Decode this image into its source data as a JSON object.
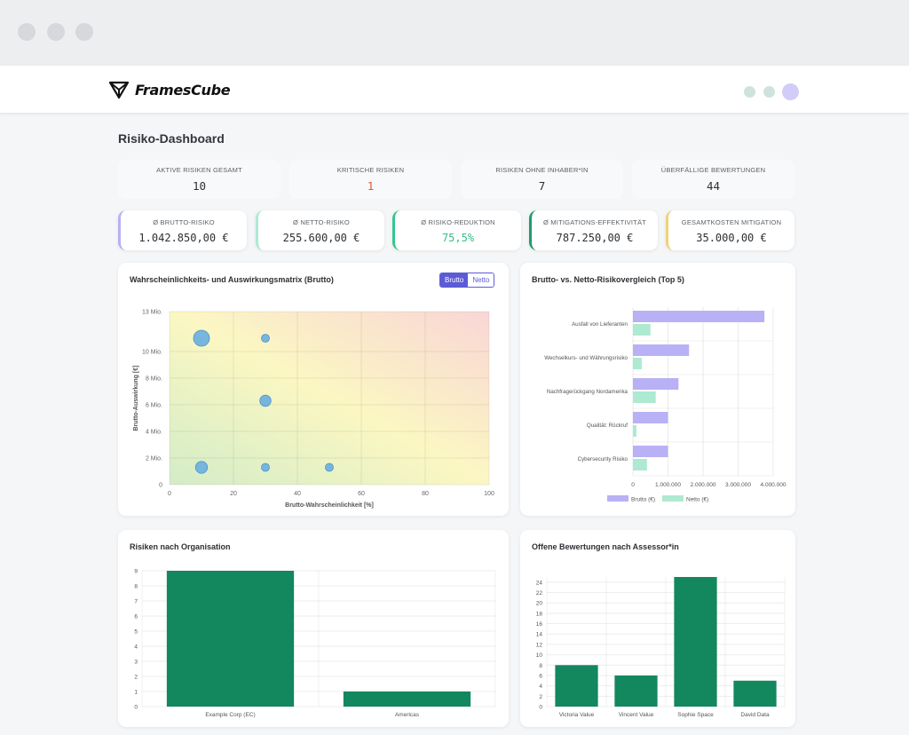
{
  "app": {
    "name": "FramesCube"
  },
  "page_title": "Risiko-Dashboard",
  "stats": [
    {
      "label": "AKTIVE RISIKEN GESAMT",
      "value": "10",
      "color": "#2d2f33"
    },
    {
      "label": "KRITISCHE RISIKEN",
      "value": "1",
      "color": "#e05a2b"
    },
    {
      "label": "RISIKEN OHNE INHABER*IN",
      "value": "7",
      "color": "#2d2f33"
    },
    {
      "label": "ÜBERFÄLLIGE BEWERTUNGEN",
      "value": "44",
      "color": "#2d2f33"
    }
  ],
  "kpis": [
    {
      "label": "Ø BRUTTO-RISIKO",
      "value": "1.042.850,00 €",
      "accent": "#b8b1f5",
      "color": "#2d2f33"
    },
    {
      "label": "Ø NETTO-RISIKO",
      "value": "255.600,00 €",
      "accent": "#aee9d1",
      "color": "#2d2f33"
    },
    {
      "label": "Ø RISIKO-REDUKTION",
      "value": "75,5%",
      "accent": "#34c88f",
      "color": "#2fbf86"
    },
    {
      "label": "Ø MITIGATIONS-EFFEKTIVITÄT",
      "value": "787.250,00 €",
      "accent": "#1e9c6f",
      "color": "#2d2f33"
    },
    {
      "label": "GESAMTKOSTEN MITIGATION",
      "value": "35.000,00 €",
      "accent": "#f0d27a",
      "color": "#2d2f33"
    }
  ],
  "matrix": {
    "title": "Wahrscheinlichkeits- und Auswirkungsmatrix (Brutto)",
    "toggle": {
      "on": "Brutto",
      "off": "Netto"
    }
  },
  "compare": {
    "title": "Brutto- vs. Netto-Risikovergleich (Top 5)"
  },
  "org": {
    "title": "Risiken nach Organisation"
  },
  "assessor": {
    "title": "Offene Bewertungen nach Assessor*in"
  },
  "chart_data": [
    {
      "type": "scatter",
      "title": "Wahrscheinlichkeits- und Auswirkungsmatrix (Brutto)",
      "xlabel": "Brutto-Wahrscheinlichkeit [%]",
      "ylabel": "Brutto-Auswirkung [€]",
      "xlim": [
        0,
        100
      ],
      "ylim": [
        0,
        13000000
      ],
      "xticks": [
        "0",
        "20",
        "40",
        "60",
        "80",
        "100"
      ],
      "yticks": [
        {
          "v": 0,
          "t": "0"
        },
        {
          "v": 2000000,
          "t": "2 Mio."
        },
        {
          "v": 4000000,
          "t": "4 Mio."
        },
        {
          "v": 6000000,
          "t": "6 Mio."
        },
        {
          "v": 8000000,
          "t": "8 Mio."
        },
        {
          "v": 10000000,
          "t": "10 Mio."
        },
        {
          "v": 13000000,
          "t": "13 Mio."
        }
      ],
      "points": [
        {
          "x": 10,
          "y": 11000000,
          "size": 2
        },
        {
          "x": 30,
          "y": 11000000,
          "size": 1
        },
        {
          "x": 30,
          "y": 6300000,
          "size": 1.4
        },
        {
          "x": 10,
          "y": 1300000,
          "size": 1.5
        },
        {
          "x": 30,
          "y": 1300000,
          "size": 1
        },
        {
          "x": 50,
          "y": 1300000,
          "size": 1
        }
      ],
      "color": "#6aaede",
      "grid": true
    },
    {
      "type": "bar",
      "orientation": "horizontal",
      "title": "Brutto- vs. Netto-Risikovergleich (Top 5)",
      "categories": [
        "Ausfall von Lieferanten",
        "Wechselkurs- und Währungsrisiko",
        "Nachfragerückgang Nordamerika",
        "Qualität: Rückruf",
        "Cybersecurity Risiko"
      ],
      "series": [
        {
          "name": "Brutto (€)",
          "values": [
            3750000,
            1600000,
            1300000,
            1000000,
            1000000
          ],
          "color": "#b8b1f5"
        },
        {
          "name": "Netto (€)",
          "values": [
            500000,
            250000,
            650000,
            100000,
            400000
          ],
          "color": "#aee9d1"
        }
      ],
      "xlim": [
        0,
        4000000
      ],
      "xticks": [
        "0",
        "1.000.000",
        "2.000.000",
        "3.000.000",
        "4.000.000"
      ],
      "legend": "bottom",
      "grid": true
    },
    {
      "type": "bar",
      "title": "Risiken nach Organisation",
      "categories": [
        "Example Corp (EC)",
        "Americas"
      ],
      "values": [
        9,
        1
      ],
      "ylim": [
        0,
        9
      ],
      "yticks": [
        "0",
        "1",
        "2",
        "3",
        "4",
        "5",
        "6",
        "7",
        "8",
        "9"
      ],
      "color": "#13875e",
      "grid": true
    },
    {
      "type": "bar",
      "title": "Offene Bewertungen nach Assessor*in",
      "categories": [
        "Victoria Value",
        "Vincent Value",
        "Sophie Space",
        "David Data"
      ],
      "values": [
        8,
        6,
        25,
        5
      ],
      "ylim": [
        0,
        25
      ],
      "yticks": [
        "0",
        "2",
        "4",
        "6",
        "8",
        "10",
        "12",
        "14",
        "16",
        "18",
        "20",
        "22",
        "24"
      ],
      "color": "#13875e",
      "grid": true
    }
  ]
}
